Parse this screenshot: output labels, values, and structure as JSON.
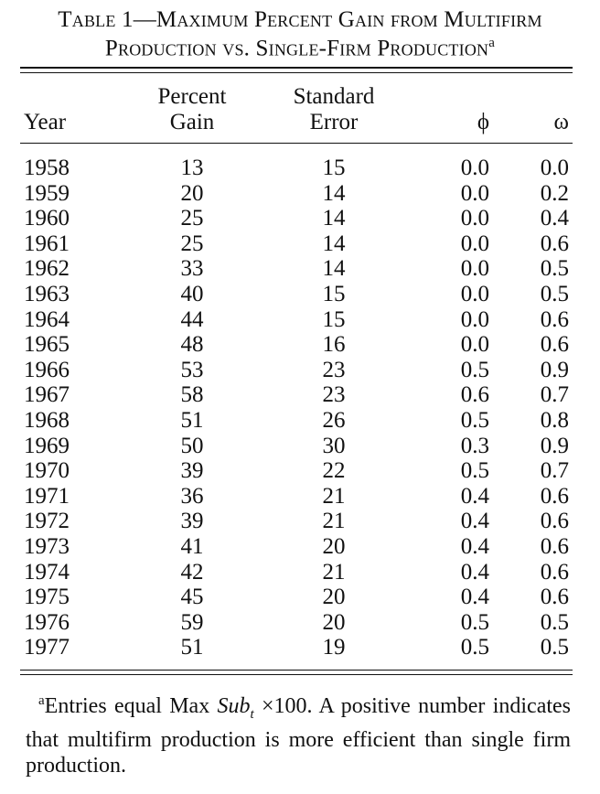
{
  "title": {
    "line1": "Table 1—Maximum Percent Gain from Multifirm",
    "line2": "Production vs. Single-Firm Production",
    "footnote_marker": "a"
  },
  "headers": {
    "year": "Year",
    "gain_line1": "Percent",
    "gain_line2": "Gain",
    "se_line1": "Standard",
    "se_line2": "Error",
    "phi": "ϕ",
    "omega": "ω"
  },
  "rows": [
    {
      "year": "1958",
      "gain": "13",
      "se": "15",
      "phi": "0.0",
      "omega": "0.0"
    },
    {
      "year": "1959",
      "gain": "20",
      "se": "14",
      "phi": "0.0",
      "omega": "0.2"
    },
    {
      "year": "1960",
      "gain": "25",
      "se": "14",
      "phi": "0.0",
      "omega": "0.4"
    },
    {
      "year": "1961",
      "gain": "25",
      "se": "14",
      "phi": "0.0",
      "omega": "0.6"
    },
    {
      "year": "1962",
      "gain": "33",
      "se": "14",
      "phi": "0.0",
      "omega": "0.5"
    },
    {
      "year": "1963",
      "gain": "40",
      "se": "15",
      "phi": "0.0",
      "omega": "0.5"
    },
    {
      "year": "1964",
      "gain": "44",
      "se": "15",
      "phi": "0.0",
      "omega": "0.6"
    },
    {
      "year": "1965",
      "gain": "48",
      "se": "16",
      "phi": "0.0",
      "omega": "0.6"
    },
    {
      "year": "1966",
      "gain": "53",
      "se": "23",
      "phi": "0.5",
      "omega": "0.9"
    },
    {
      "year": "1967",
      "gain": "58",
      "se": "23",
      "phi": "0.6",
      "omega": "0.7"
    },
    {
      "year": "1968",
      "gain": "51",
      "se": "26",
      "phi": "0.5",
      "omega": "0.8"
    },
    {
      "year": "1969",
      "gain": "50",
      "se": "30",
      "phi": "0.3",
      "omega": "0.9"
    },
    {
      "year": "1970",
      "gain": "39",
      "se": "22",
      "phi": "0.5",
      "omega": "0.7"
    },
    {
      "year": "1971",
      "gain": "36",
      "se": "21",
      "phi": "0.4",
      "omega": "0.6"
    },
    {
      "year": "1972",
      "gain": "39",
      "se": "21",
      "phi": "0.4",
      "omega": "0.6"
    },
    {
      "year": "1973",
      "gain": "41",
      "se": "20",
      "phi": "0.4",
      "omega": "0.6"
    },
    {
      "year": "1974",
      "gain": "42",
      "se": "21",
      "phi": "0.4",
      "omega": "0.6"
    },
    {
      "year": "1975",
      "gain": "45",
      "se": "20",
      "phi": "0.4",
      "omega": "0.6"
    },
    {
      "year": "1976",
      "gain": "59",
      "se": "20",
      "phi": "0.5",
      "omega": "0.5"
    },
    {
      "year": "1977",
      "gain": "51",
      "se": "19",
      "phi": "0.5",
      "omega": "0.5"
    }
  ],
  "footnote": {
    "marker": "a",
    "text_before": "Entries equal Max ",
    "sub_italic": "Sub",
    "subscript": "t",
    "text_after": " ×100. A positive number indicates that multifirm production is more efficient than single firm production."
  }
}
